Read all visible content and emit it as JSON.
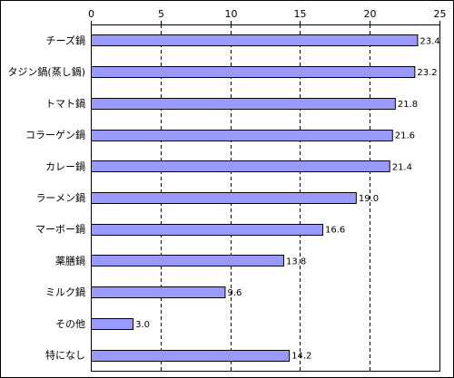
{
  "chart_data": {
    "type": "bar",
    "orientation": "horizontal",
    "title": "",
    "xlabel": "",
    "ylabel": "",
    "xlim": [
      0,
      25
    ],
    "ticks": [
      0,
      5,
      10,
      15,
      20,
      25
    ],
    "tick_labels": [
      "0",
      "5",
      "10",
      "15",
      "20",
      "25"
    ],
    "grid": "vertical-dashed",
    "legend": "none",
    "categories": [
      "チーズ鍋",
      "タジン鍋(蒸し鍋)",
      "トマト鍋",
      "コラーゲン鍋",
      "カレー鍋",
      "ラーメン鍋",
      "マーボー鍋",
      "薬膳鍋",
      "ミルク鍋",
      "その他",
      "特になし"
    ],
    "values": [
      23.4,
      23.2,
      21.8,
      21.6,
      21.4,
      19.0,
      16.6,
      13.8,
      9.6,
      3.0,
      14.2
    ],
    "value_labels": [
      "23.4",
      "23.2",
      "21.8",
      "21.6",
      "21.4",
      "19.0",
      "16.6",
      "13.8",
      "9.6",
      "3.0",
      "14.2"
    ],
    "colors": {
      "bar_fill": "#9999ff",
      "bar_stroke": "#000000",
      "grid": "#000000",
      "frame": "#000000"
    }
  }
}
